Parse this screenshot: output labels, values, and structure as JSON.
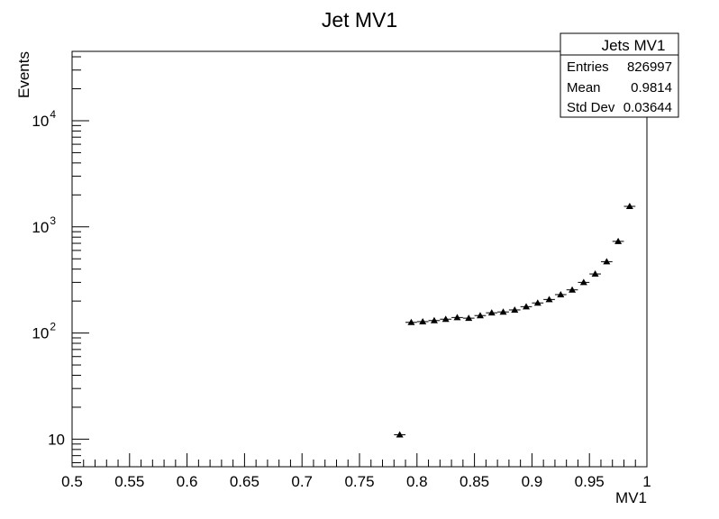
{
  "chart_data": {
    "type": "scatter",
    "title": "Jet MV1",
    "xlabel": "MV1",
    "ylabel": "Events",
    "xlim": [
      0.5,
      1.0
    ],
    "ylim": [
      5.5,
      45000
    ],
    "yscale": "log",
    "grid": false,
    "marker": "triangle-up",
    "x_ticks": [
      "0.5",
      "0.55",
      "0.6",
      "0.65",
      "0.7",
      "0.75",
      "0.8",
      "0.85",
      "0.9",
      "0.95",
      "1"
    ],
    "y_ticks": [
      {
        "value": 10,
        "base": "10",
        "exp": ""
      },
      {
        "value": 100,
        "base": "10",
        "exp": "2"
      },
      {
        "value": 1000,
        "base": "10",
        "exp": "3"
      },
      {
        "value": 10000,
        "base": "10",
        "exp": "4"
      }
    ],
    "series": [
      {
        "x": [
          0.785,
          0.795,
          0.805,
          0.815,
          0.825,
          0.835,
          0.845,
          0.855,
          0.865,
          0.875,
          0.885,
          0.895,
          0.905,
          0.915,
          0.925,
          0.935,
          0.945,
          0.955,
          0.965,
          0.975,
          0.985
        ],
        "y": [
          11,
          126,
          128,
          131,
          135,
          140,
          138,
          146,
          155,
          158,
          165,
          177,
          192,
          207,
          230,
          255,
          300,
          360,
          470,
          730,
          1560
        ]
      }
    ]
  },
  "stats_box": {
    "title": "Jets MV1",
    "rows": [
      {
        "label": "Entries",
        "value": "826997"
      },
      {
        "label": "Mean",
        "value": "0.9814"
      },
      {
        "label": "Std Dev",
        "value": "0.03644"
      }
    ]
  }
}
